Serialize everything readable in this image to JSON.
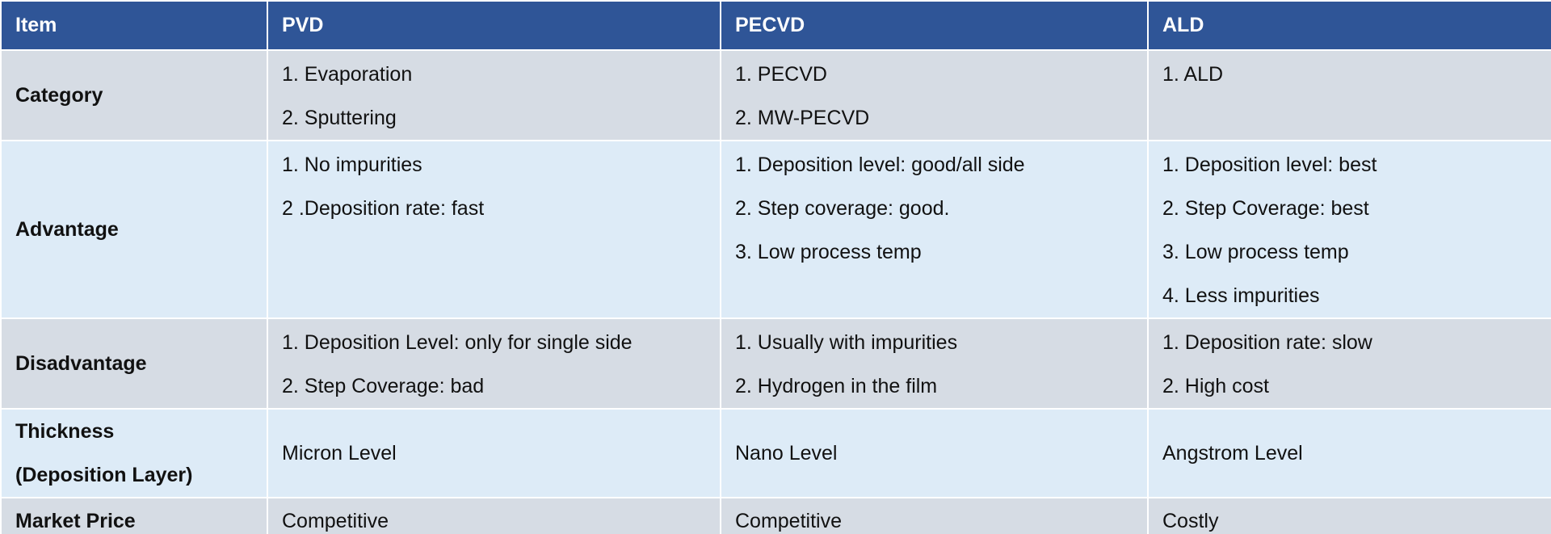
{
  "table": {
    "header": [
      "Item",
      "PVD",
      "PECVD",
      "ALD"
    ],
    "rows": [
      [
        [
          "Category"
        ],
        [
          "1. Evaporation",
          "2. Sputtering"
        ],
        [
          "1. PECVD",
          "2. MW-PECVD"
        ],
        [
          "1. ALD"
        ]
      ],
      [
        [
          "Advantage"
        ],
        [
          "1. No impurities",
          "2 .Deposition rate: fast"
        ],
        [
          "1. Deposition level: good/all side",
          "2. Step coverage: good.",
          "3. Low process temp"
        ],
        [
          "1. Deposition level: best",
          "2. Step Coverage: best",
          "3. Low process temp",
          "4. Less impurities"
        ]
      ],
      [
        [
          "Disadvantage"
        ],
        [
          "1. Deposition Level: only for single side",
          "2. Step Coverage: bad"
        ],
        [
          "1. Usually with impurities",
          "2. Hydrogen in the film"
        ],
        [
          "1. Deposition rate: slow",
          "2. High cost"
        ]
      ],
      [
        [
          "Thickness",
          "(Deposition Layer)"
        ],
        [
          "Micron Level"
        ],
        [
          "Nano Level"
        ],
        [
          "Angstrom Level"
        ]
      ],
      [
        [
          "Market Price"
        ],
        [
          "Competitive"
        ],
        [
          "Competitive"
        ],
        [
          "Costly"
        ]
      ]
    ]
  }
}
